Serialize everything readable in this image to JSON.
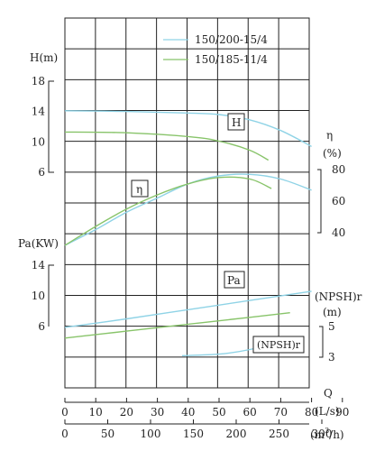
{
  "chart_data": {
    "type": "line",
    "legend": {
      "placement": "top-right",
      "entries": [
        {
          "label": "150/200-15/4",
          "color": "#8fd3e6"
        },
        {
          "label": "150/185-11/4",
          "color": "#88c46a"
        }
      ]
    },
    "axes": {
      "head": {
        "label": "H(m)",
        "ticks": [
          6,
          10,
          14,
          18
        ],
        "range": [
          6,
          18
        ]
      },
      "power": {
        "label": "Pa(KW)",
        "ticks": [
          6,
          10,
          14
        ],
        "range": [
          6,
          14
        ]
      },
      "efficiency": {
        "label": "η",
        "unit": "(%)",
        "ticks": [
          40,
          60,
          80
        ],
        "range": [
          40,
          80
        ]
      },
      "npsh": {
        "label": "(NPSH)r",
        "unit": "(m)",
        "ticks": [
          3,
          5
        ]
      },
      "flow_ls": {
        "label": "Q",
        "unit": "(L/s)",
        "ticks": [
          0,
          10,
          20,
          30,
          40,
          50,
          60,
          70,
          80,
          90
        ]
      },
      "flow_m3h": {
        "unit": "(m³/h)",
        "unit_base": "(m",
        "unit_sup": "3",
        "unit_tail": "/h)",
        "ticks": [
          0,
          50,
          100,
          150,
          200,
          250,
          300
        ]
      }
    },
    "curve_labels": {
      "head": "H",
      "efficiency": "η",
      "power": "Pa",
      "npsh": "(NPSH)r"
    },
    "grid": true,
    "series": [
      {
        "name": "150/200-15/4",
        "color": "#8fd3e6",
        "kind": "head",
        "x": [
          0,
          20,
          40,
          50,
          60,
          70,
          80
        ],
        "y": [
          14.1,
          14.0,
          13.8,
          13.6,
          12.9,
          11.5,
          9.4
        ]
      },
      {
        "name": "150/200-15/4",
        "color": "#8fd3e6",
        "kind": "efficiency",
        "x": [
          0,
          10,
          20,
          30,
          40,
          50,
          60,
          70,
          80
        ],
        "y": [
          32,
          42,
          53,
          62,
          71,
          76,
          77,
          74,
          67
        ]
      },
      {
        "name": "150/200-15/4",
        "color": "#8fd3e6",
        "kind": "power",
        "x": [
          0,
          20,
          40,
          60,
          80
        ],
        "y": [
          5.9,
          7.0,
          8.2,
          9.4,
          10.6
        ]
      },
      {
        "name": "150/200-15/4",
        "color": "#8fd3e6",
        "kind": "npsh",
        "x": [
          38,
          50,
          60,
          72
        ],
        "y": [
          3.1,
          3.2,
          3.5,
          4.1
        ]
      },
      {
        "name": "150/185-11/4",
        "color": "#88c46a",
        "kind": "head",
        "x": [
          0,
          20,
          40,
          50,
          60,
          66
        ],
        "y": [
          11.3,
          11.2,
          10.7,
          10.1,
          8.9,
          7.6
        ]
      },
      {
        "name": "150/185-11/4",
        "color": "#88c46a",
        "kind": "efficiency",
        "x": [
          0,
          10,
          20,
          30,
          40,
          50,
          60,
          67
        ],
        "y": [
          32,
          44,
          55,
          64,
          71,
          75,
          74,
          68
        ]
      },
      {
        "name": "150/185-11/4",
        "color": "#88c46a",
        "kind": "power",
        "x": [
          0,
          20,
          40,
          60,
          73
        ],
        "y": [
          4.5,
          5.4,
          6.3,
          7.2,
          7.8
        ]
      }
    ]
  }
}
